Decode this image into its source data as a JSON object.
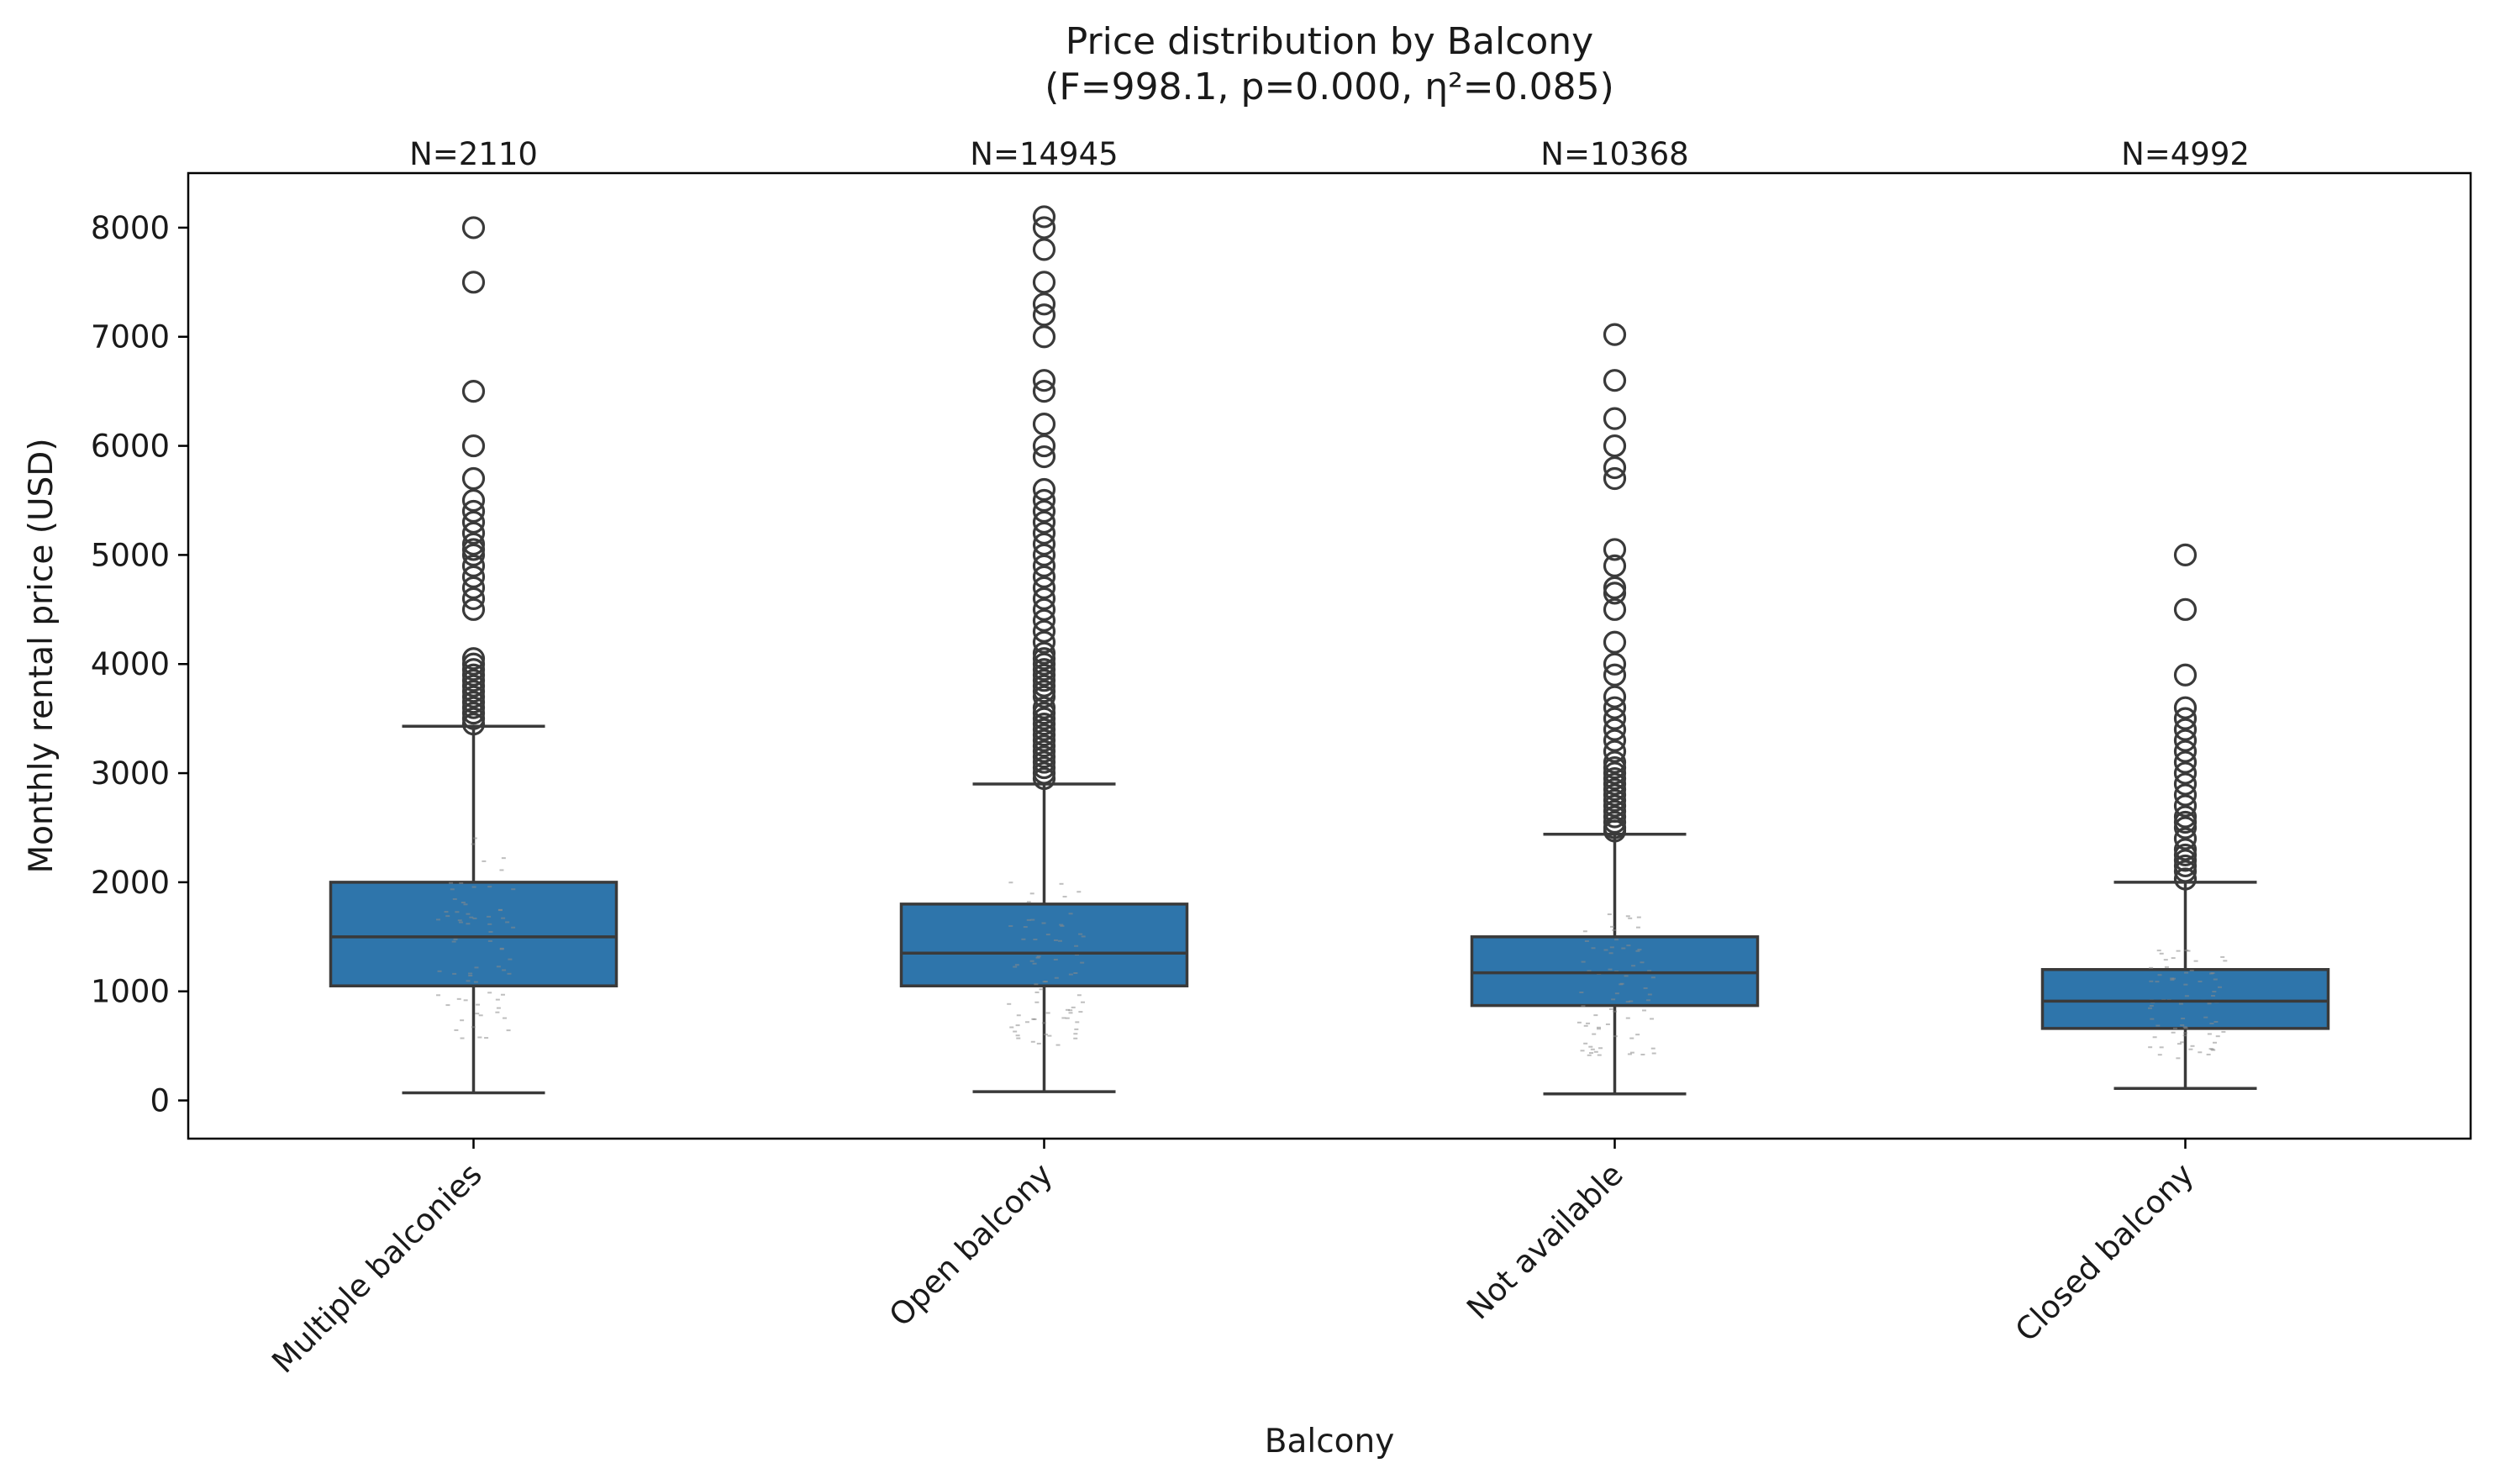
{
  "chart_data": {
    "type": "box",
    "title": "Price distribution by Balcony",
    "subtitle": "(F=998.1, p=0.000, η²=0.085)",
    "xlabel": "Balcony",
    "ylabel": "Monthly rental price (USD)",
    "ylim": [
      -350,
      8500
    ],
    "yticks": [
      0,
      1000,
      2000,
      3000,
      4000,
      5000,
      6000,
      7000,
      8000
    ],
    "grid": false,
    "colors": {
      "box": "#2e75ab",
      "line": "#3a3a3a",
      "jitter": "#8a8a8a"
    },
    "categories": [
      "Multiple balconies",
      "Open balcony",
      "Not available",
      "Closed balcony"
    ],
    "counts": [
      "N=2110",
      "N=14945",
      "N=10368",
      "N=4992"
    ],
    "boxes": [
      {
        "category": "Multiple balconies",
        "whisker_low": 70,
        "q1": 1050,
        "median": 1500,
        "q3": 2000,
        "whisker_high": 3430,
        "outliers": [
          3450,
          3500,
          3550,
          3600,
          3650,
          3700,
          3750,
          3800,
          3850,
          3900,
          3950,
          4000,
          4050,
          4500,
          4600,
          4700,
          4800,
          4900,
          5000,
          5050,
          5100,
          5200,
          5300,
          5400,
          5500,
          5700,
          6000,
          6500,
          7500,
          8000
        ]
      },
      {
        "category": "Open balcony",
        "whisker_low": 80,
        "q1": 1050,
        "median": 1350,
        "q3": 1800,
        "whisker_high": 2900,
        "outliers": [
          2950,
          3000,
          3050,
          3100,
          3150,
          3200,
          3250,
          3300,
          3350,
          3400,
          3450,
          3500,
          3550,
          3600,
          3700,
          3750,
          3800,
          3850,
          3900,
          3950,
          4000,
          4050,
          4100,
          4200,
          4300,
          4400,
          4500,
          4600,
          4700,
          4800,
          4900,
          5000,
          5100,
          5200,
          5300,
          5400,
          5500,
          5600,
          5900,
          6000,
          6200,
          6500,
          6600,
          7000,
          7200,
          7300,
          7500,
          7800,
          8000,
          8100
        ]
      },
      {
        "category": "Not available",
        "whisker_low": 60,
        "q1": 870,
        "median": 1170,
        "q3": 1500,
        "whisker_high": 2440,
        "outliers": [
          2470,
          2500,
          2550,
          2600,
          2650,
          2700,
          2750,
          2800,
          2850,
          2900,
          2950,
          3000,
          3050,
          3100,
          3200,
          3300,
          3400,
          3500,
          3600,
          3700,
          3900,
          4000,
          4200,
          4500,
          4650,
          4700,
          4900,
          5050,
          5700,
          5800,
          6000,
          6250,
          6600,
          7020
        ]
      },
      {
        "category": "Closed balcony",
        "whisker_low": 110,
        "q1": 660,
        "median": 910,
        "q3": 1200,
        "whisker_high": 2000,
        "outliers": [
          2030,
          2100,
          2150,
          2200,
          2250,
          2300,
          2400,
          2500,
          2550,
          2600,
          2700,
          2800,
          2900,
          3000,
          3100,
          3200,
          3300,
          3400,
          3500,
          3600,
          3900,
          4500,
          5000
        ]
      }
    ]
  }
}
